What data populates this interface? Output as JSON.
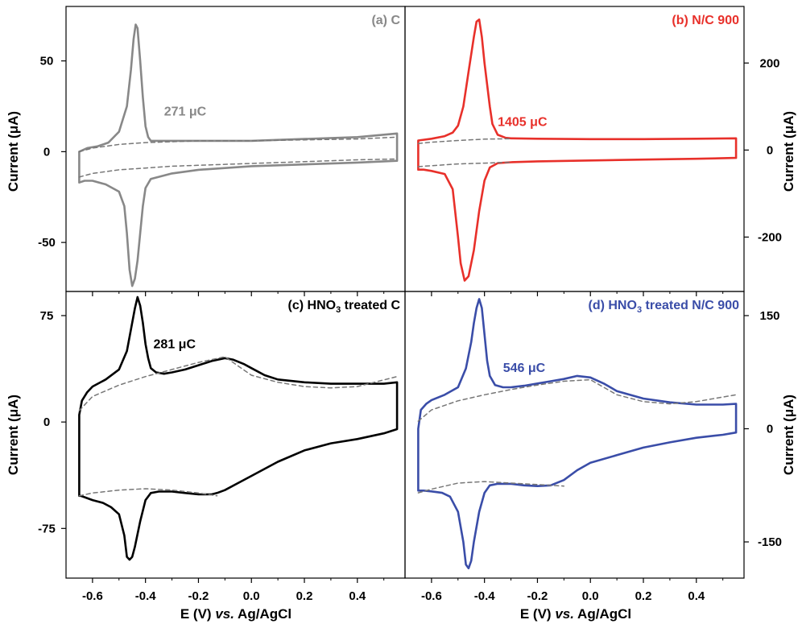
{
  "figure": {
    "xlabel_main": "E (V) ",
    "xlabel_italic": "vs.",
    "xlabel_tail": " Ag/AgCl",
    "ylabel": "Current (μA)"
  },
  "colors": {
    "axis": "#000000",
    "baseline_dashed": "#777777",
    "panel_a": "#888888",
    "panel_b": "#e8302a",
    "panel_c": "#000000",
    "panel_d": "#3a4da8"
  },
  "chart_data": [
    {
      "type": "line",
      "panel": "a",
      "title": "(a) C",
      "annotation": "271 μC",
      "annotation_at": [
        -0.33,
        20
      ],
      "xlim": [
        -0.7,
        0.58
      ],
      "ylim": [
        -77,
        80
      ],
      "ytick_side": "left",
      "yticks": [
        -50,
        0,
        50
      ],
      "xticks": [
        -0.6,
        -0.4,
        -0.2,
        0.0,
        0.2,
        0.4
      ],
      "show_xtick_labels": false,
      "color": "#888888",
      "series": [
        {
          "style": "solid",
          "x": [
            -0.65,
            -0.62,
            -0.58,
            -0.54,
            -0.5,
            -0.47,
            -0.455,
            -0.445,
            -0.437,
            -0.43,
            -0.42,
            -0.41,
            -0.4,
            -0.39,
            -0.38,
            -0.36,
            -0.3,
            -0.2,
            -0.1,
            0.0,
            0.2,
            0.4,
            0.55,
            0.55,
            0.4,
            0.2,
            0.0,
            -0.2,
            -0.3,
            -0.38,
            -0.4,
            -0.41,
            -0.42,
            -0.43,
            -0.44,
            -0.45,
            -0.46,
            -0.47,
            -0.48,
            -0.5,
            -0.55,
            -0.6,
            -0.63,
            -0.65,
            -0.65
          ],
          "y": [
            0,
            2,
            3,
            5,
            11,
            25,
            45,
            62,
            70,
            68,
            50,
            30,
            14,
            8,
            6,
            6,
            6,
            6,
            6,
            6,
            7,
            8,
            10,
            -5,
            -6,
            -7,
            -8,
            -10,
            -12,
            -15,
            -20,
            -30,
            -45,
            -60,
            -70,
            -74,
            -65,
            -45,
            -30,
            -22,
            -18,
            -16,
            -16,
            -17,
            0
          ]
        },
        {
          "style": "dashed",
          "x": [
            -0.65,
            -0.6,
            -0.5,
            -0.4,
            -0.3,
            -0.2,
            0.0,
            0.2,
            0.4,
            0.55
          ],
          "y": [
            0,
            2,
            4,
            5,
            5.5,
            6,
            6,
            6.5,
            7,
            8
          ]
        },
        {
          "style": "dashed",
          "x": [
            -0.65,
            -0.6,
            -0.5,
            -0.4,
            -0.3,
            -0.2,
            0.0,
            0.2,
            0.4,
            0.55
          ],
          "y": [
            -14,
            -12,
            -10,
            -9,
            -8,
            -7.5,
            -6.5,
            -5.5,
            -4.5,
            -4
          ]
        }
      ]
    },
    {
      "type": "line",
      "panel": "b",
      "title": "(b) N/C 900",
      "annotation": "1405 μC",
      "annotation_at": [
        -0.35,
        55
      ],
      "xlim": [
        -0.7,
        0.58
      ],
      "ylim": [
        -325,
        330
      ],
      "ytick_side": "right",
      "yticks": [
        -200,
        0,
        200
      ],
      "xticks": [
        -0.6,
        -0.4,
        -0.2,
        0.0,
        0.2,
        0.4
      ],
      "show_xtick_labels": false,
      "color": "#e8302a",
      "series": [
        {
          "style": "solid",
          "x": [
            -0.65,
            -0.6,
            -0.55,
            -0.52,
            -0.5,
            -0.48,
            -0.46,
            -0.44,
            -0.43,
            -0.42,
            -0.41,
            -0.4,
            -0.39,
            -0.38,
            -0.37,
            -0.35,
            -0.32,
            -0.3,
            -0.2,
            0.0,
            0.2,
            0.4,
            0.55,
            0.55,
            0.4,
            0.2,
            0.0,
            -0.2,
            -0.3,
            -0.35,
            -0.38,
            -0.4,
            -0.42,
            -0.44,
            -0.46,
            -0.475,
            -0.49,
            -0.5,
            -0.52,
            -0.55,
            -0.6,
            -0.63,
            -0.65,
            -0.65
          ],
          "y": [
            22,
            26,
            32,
            40,
            56,
            100,
            180,
            260,
            295,
            300,
            260,
            200,
            150,
            100,
            60,
            35,
            28,
            27,
            26,
            25,
            25,
            26,
            27,
            -18,
            -20,
            -22,
            -24,
            -26,
            -28,
            -30,
            -40,
            -70,
            -140,
            -230,
            -290,
            -300,
            -260,
            -200,
            -90,
            -55,
            -48,
            -45,
            -45,
            22
          ]
        },
        {
          "style": "dashed",
          "x": [
            -0.65,
            -0.6,
            -0.5,
            -0.4,
            -0.3
          ],
          "y": [
            15,
            18,
            22,
            25,
            26
          ]
        },
        {
          "style": "dashed",
          "x": [
            -0.65,
            -0.6,
            -0.5,
            -0.4,
            -0.3
          ],
          "y": [
            -38,
            -36,
            -32,
            -30,
            -28
          ]
        }
      ]
    },
    {
      "type": "line",
      "panel": "c",
      "title": "(c) HNO3 treated C",
      "title_main": "(c) HNO",
      "title_sub": "3",
      "title_tail": " treated C",
      "annotation": "281 μC",
      "annotation_at": [
        -0.37,
        52
      ],
      "xlim": [
        -0.7,
        0.58
      ],
      "ylim": [
        -110,
        92
      ],
      "ytick_side": "left",
      "yticks": [
        -75,
        0,
        75
      ],
      "xticks": [
        -0.6,
        -0.4,
        -0.2,
        0.0,
        0.2,
        0.4
      ],
      "show_xtick_labels": true,
      "color": "#000000",
      "series": [
        {
          "style": "solid",
          "x": [
            -0.65,
            -0.64,
            -0.62,
            -0.6,
            -0.55,
            -0.5,
            -0.47,
            -0.45,
            -0.44,
            -0.43,
            -0.42,
            -0.41,
            -0.4,
            -0.39,
            -0.38,
            -0.36,
            -0.33,
            -0.3,
            -0.25,
            -0.2,
            -0.15,
            -0.1,
            -0.07,
            -0.03,
            0.0,
            0.05,
            0.1,
            0.2,
            0.3,
            0.4,
            0.5,
            0.55,
            0.55,
            0.5,
            0.4,
            0.3,
            0.2,
            0.1,
            0.0,
            -0.05,
            -0.1,
            -0.13,
            -0.15,
            -0.2,
            -0.25,
            -0.3,
            -0.35,
            -0.38,
            -0.4,
            -0.42,
            -0.44,
            -0.45,
            -0.46,
            -0.47,
            -0.48,
            -0.5,
            -0.53,
            -0.56,
            -0.6,
            -0.63,
            -0.645,
            -0.65,
            -0.65
          ],
          "y": [
            5,
            15,
            21,
            25,
            30,
            37,
            50,
            70,
            80,
            88,
            82,
            70,
            55,
            45,
            38,
            35,
            34,
            35,
            37,
            40,
            43,
            45,
            44,
            41,
            38,
            33,
            30,
            28,
            27,
            27,
            27,
            28,
            -5,
            -8,
            -12,
            -15,
            -20,
            -28,
            -38,
            -43,
            -48,
            -50,
            -51,
            -51,
            -50,
            -49,
            -49,
            -50,
            -55,
            -70,
            -88,
            -95,
            -97,
            -95,
            -80,
            -65,
            -60,
            -57,
            -55,
            -53,
            -52,
            -52,
            5
          ]
        },
        {
          "style": "dashed",
          "x": [
            -0.65,
            -0.6,
            -0.5,
            -0.4,
            -0.3,
            -0.2,
            -0.1,
            0.0,
            0.1,
            0.2,
            0.3,
            0.4,
            0.55
          ],
          "y": [
            8,
            18,
            26,
            32,
            37,
            42,
            46,
            33,
            28,
            25,
            24,
            25,
            32
          ]
        },
        {
          "style": "dashed",
          "x": [
            -0.65,
            -0.6,
            -0.5,
            -0.4,
            -0.3,
            -0.2,
            -0.13
          ],
          "y": [
            -52,
            -50,
            -48,
            -47,
            -48,
            -50,
            -52
          ]
        }
      ]
    },
    {
      "type": "line",
      "panel": "d",
      "title": "(d) HNO3 treated N/C 900",
      "title_main": "(d) HNO",
      "title_sub": "3",
      "title_tail": " treated N/C 900",
      "annotation": "546 μC",
      "annotation_at": [
        -0.33,
        75
      ],
      "xlim": [
        -0.7,
        0.58
      ],
      "ylim": [
        -198,
        182
      ],
      "ytick_side": "right",
      "yticks": [
        -150,
        0,
        150
      ],
      "xticks": [
        -0.6,
        -0.4,
        -0.2,
        0.0,
        0.2,
        0.4
      ],
      "show_xtick_labels": true,
      "color": "#3a4da8",
      "series": [
        {
          "style": "solid",
          "x": [
            -0.65,
            -0.64,
            -0.62,
            -0.6,
            -0.55,
            -0.5,
            -0.47,
            -0.45,
            -0.44,
            -0.43,
            -0.42,
            -0.41,
            -0.4,
            -0.39,
            -0.38,
            -0.36,
            -0.33,
            -0.3,
            -0.25,
            -0.2,
            -0.15,
            -0.1,
            -0.05,
            0.0,
            0.05,
            0.1,
            0.2,
            0.3,
            0.4,
            0.5,
            0.55,
            0.55,
            0.5,
            0.4,
            0.3,
            0.2,
            0.1,
            0.0,
            -0.05,
            -0.1,
            -0.15,
            -0.2,
            -0.25,
            -0.3,
            -0.35,
            -0.38,
            -0.4,
            -0.42,
            -0.44,
            -0.45,
            -0.46,
            -0.47,
            -0.48,
            -0.5,
            -0.53,
            -0.56,
            -0.6,
            -0.63,
            -0.65,
            -0.65
          ],
          "y": [
            0,
            25,
            33,
            38,
            45,
            55,
            80,
            115,
            140,
            160,
            172,
            160,
            125,
            90,
            70,
            58,
            55,
            55,
            57,
            60,
            63,
            66,
            70,
            68,
            60,
            50,
            40,
            35,
            32,
            32,
            33,
            -5,
            -8,
            -12,
            -18,
            -25,
            -35,
            -45,
            -55,
            -68,
            -75,
            -76,
            -75,
            -73,
            -73,
            -75,
            -85,
            -110,
            -150,
            -175,
            -185,
            -180,
            -150,
            -110,
            -90,
            -85,
            -83,
            -82,
            -82,
            0
          ]
        },
        {
          "style": "dashed",
          "x": [
            -0.65,
            -0.6,
            -0.5,
            -0.4,
            -0.3,
            -0.2,
            -0.1,
            0.0,
            0.1,
            0.2,
            0.3,
            0.4,
            0.55
          ],
          "y": [
            10,
            25,
            37,
            45,
            52,
            58,
            63,
            65,
            45,
            36,
            33,
            36,
            45
          ]
        },
        {
          "style": "dashed",
          "x": [
            -0.65,
            -0.6,
            -0.5,
            -0.4,
            -0.3,
            -0.2,
            -0.1
          ],
          "y": [
            -85,
            -80,
            -72,
            -70,
            -72,
            -74,
            -76
          ]
        }
      ]
    }
  ]
}
